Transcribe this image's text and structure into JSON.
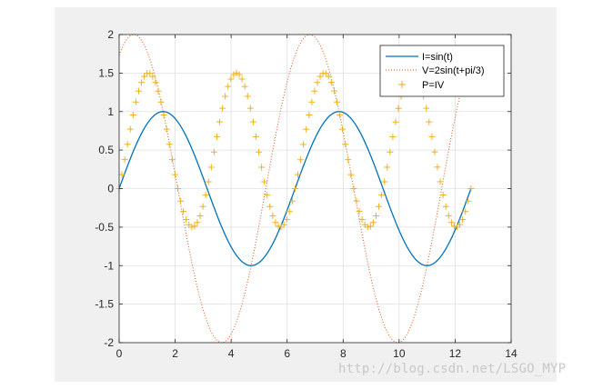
{
  "chart_data": {
    "type": "line",
    "x_range": [
      0,
      12.566
    ],
    "xlim": [
      0,
      14
    ],
    "ylim": [
      -2,
      2
    ],
    "xticks": [
      0,
      2,
      4,
      6,
      8,
      10,
      12,
      14
    ],
    "yticks": [
      -2,
      -1.5,
      -1,
      -0.5,
      0,
      0.5,
      1,
      1.5,
      2
    ],
    "xtick_labels": [
      "0",
      "2",
      "4",
      "6",
      "8",
      "10",
      "12",
      "14"
    ],
    "ytick_labels": [
      "-2",
      "-1.5",
      "-1",
      "-0.5",
      "0",
      "0.5",
      "1",
      "1.5",
      "2"
    ],
    "grid": true,
    "legend_position": "top-right",
    "series": [
      {
        "name": "I=sin(t)",
        "style": "solid",
        "color": "#0072bd",
        "formula": "sin(t)"
      },
      {
        "name": "V=2sin(t+pi/3)",
        "style": "dotted",
        "color": "#d95319",
        "formula": "2*sin(t+pi/3)"
      },
      {
        "name": "P=IV",
        "style": "plus-markers",
        "color": "#edb120",
        "formula": "2*sin(t)*sin(t+pi/3)"
      }
    ]
  },
  "watermark": "http://blog.csdn.net/LSGO_MYP"
}
